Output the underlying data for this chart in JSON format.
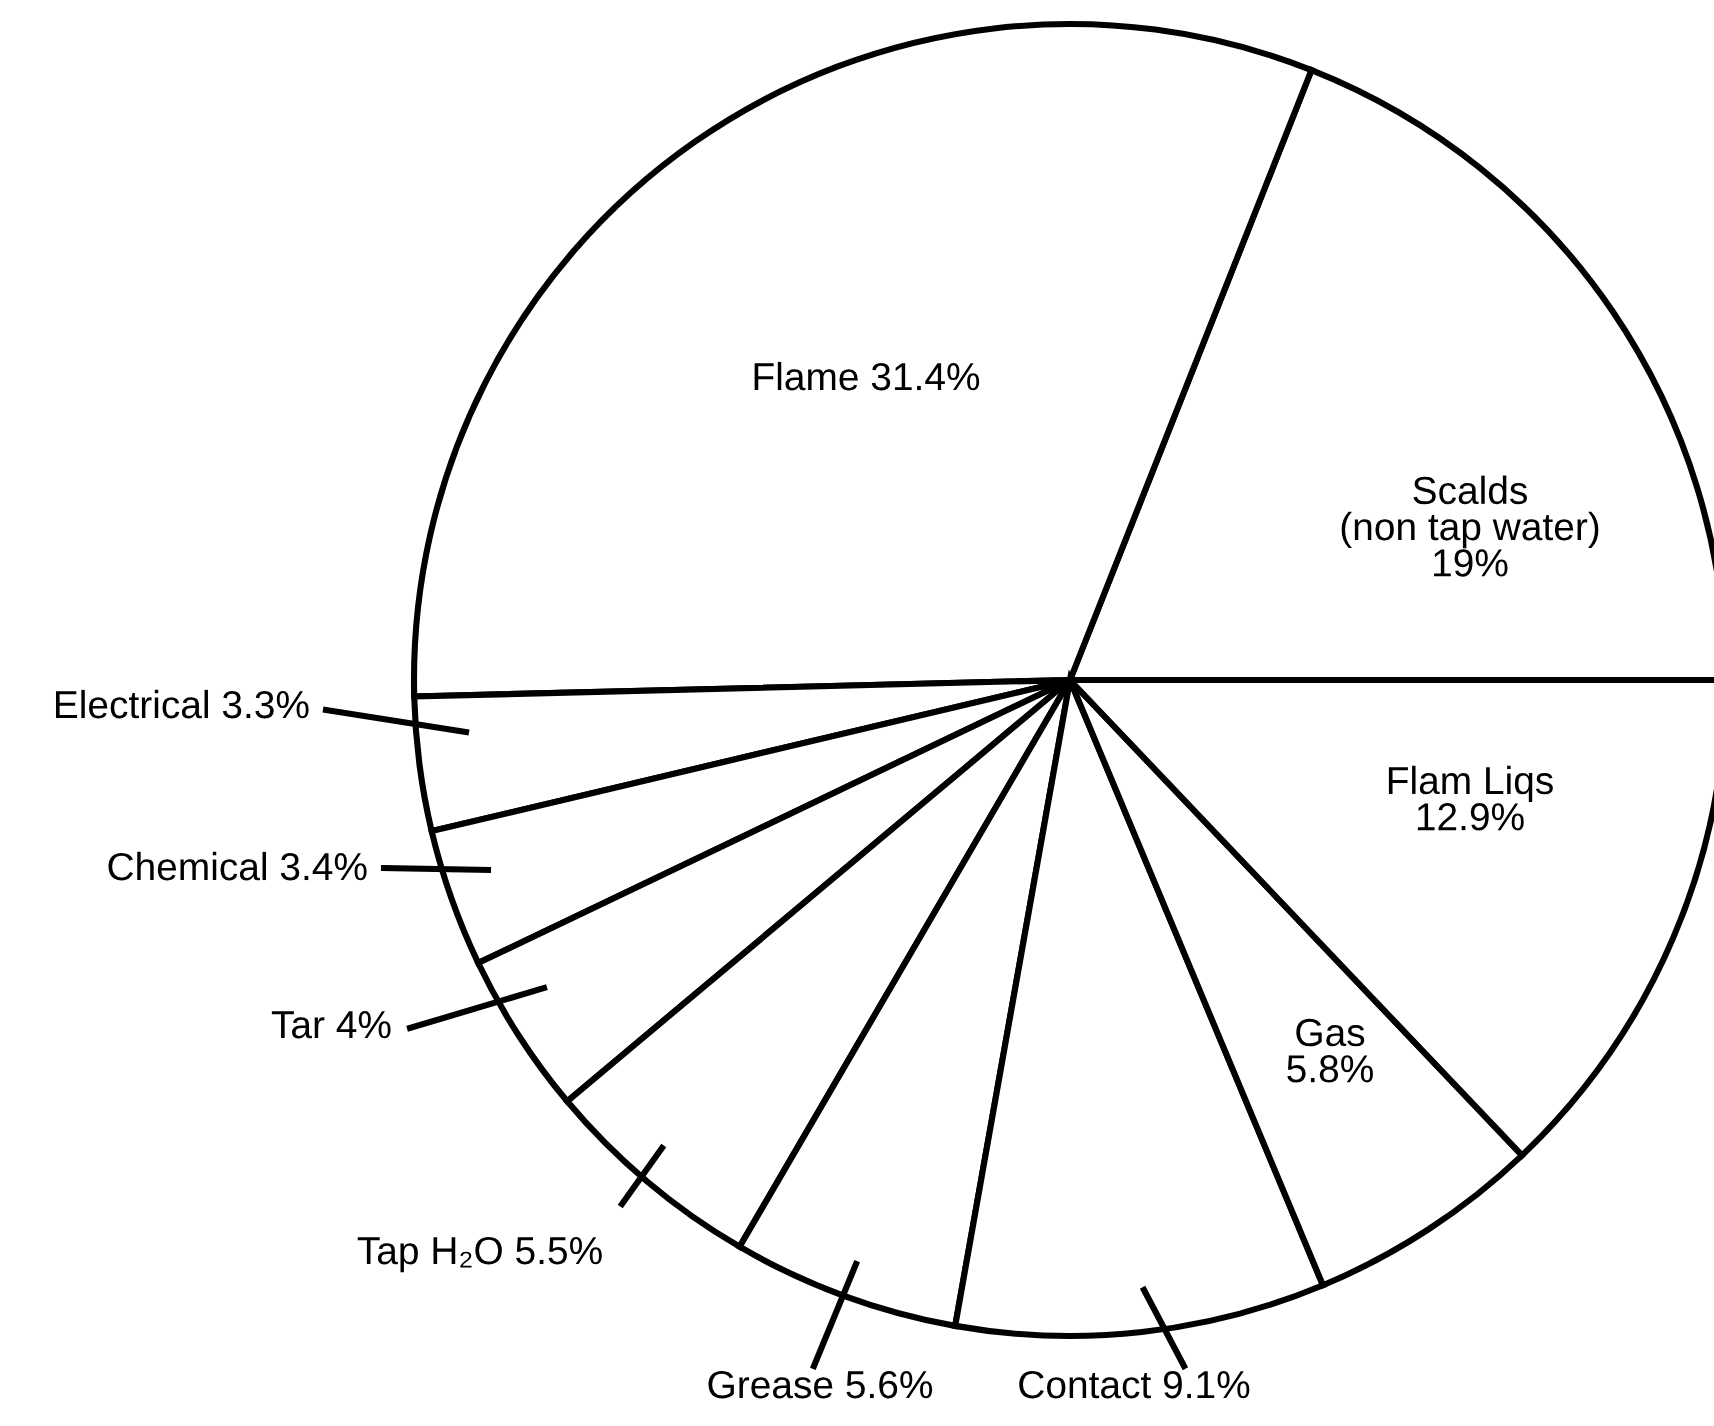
{
  "chart_data": {
    "type": "pie",
    "categories": [
      "Scalds\n(non tap water)",
      "Flame",
      "Electrical",
      "Chemical",
      "Tar",
      "Tap H₂O",
      "Grease",
      "Contact",
      "Gas",
      "Flam Liqs"
    ],
    "values": [
      19,
      31.4,
      3.3,
      3.4,
      4,
      5.5,
      5.6,
      9.1,
      5.8,
      12.9
    ],
    "value_labels": [
      "19%",
      "31.4%",
      "3.3%",
      "3.4%",
      "4%",
      "5.5%",
      "5.6%",
      "9.1%",
      "5.8%",
      "12.9%"
    ],
    "colors": [
      "#ffffff",
      "#ffffff",
      "#ffffff",
      "#ffffff",
      "#ffffff",
      "#ffffff",
      "#ffffff",
      "#ffffff",
      "#ffffff",
      "#ffffff"
    ],
    "legend": false
  }
}
